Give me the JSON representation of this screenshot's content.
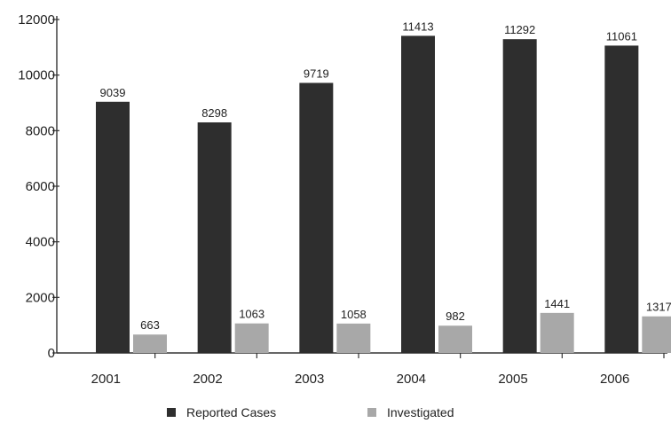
{
  "chart_data": {
    "type": "bar",
    "categories": [
      "2001",
      "2002",
      "2003",
      "2004",
      "2005",
      "2006"
    ],
    "series": [
      {
        "name": "Reported Cases",
        "values": [
          9039,
          8298,
          9719,
          11413,
          11292,
          11061
        ],
        "labels": [
          "9039",
          "8298",
          "9719",
          "11413",
          "11292",
          "11061"
        ],
        "color": "#2e2e2e"
      },
      {
        "name": "Investigated",
        "values": [
          663,
          1063,
          1058,
          982,
          1441,
          1317
        ],
        "labels": [
          "663",
          "1063",
          "1058",
          "982",
          "1441",
          "1317"
        ],
        "color": "#a8a8a8"
      }
    ],
    "ylim": [
      0,
      12000
    ],
    "yticks": [
      0,
      2000,
      4000,
      6000,
      8000,
      10000,
      12000
    ],
    "ytick_labels": [
      "0",
      "2000",
      "4000",
      "6000",
      "8000",
      "10000",
      "12000"
    ],
    "grid": false,
    "legend_position": "bottom-center",
    "title": "",
    "xlabel": "",
    "ylabel": ""
  }
}
